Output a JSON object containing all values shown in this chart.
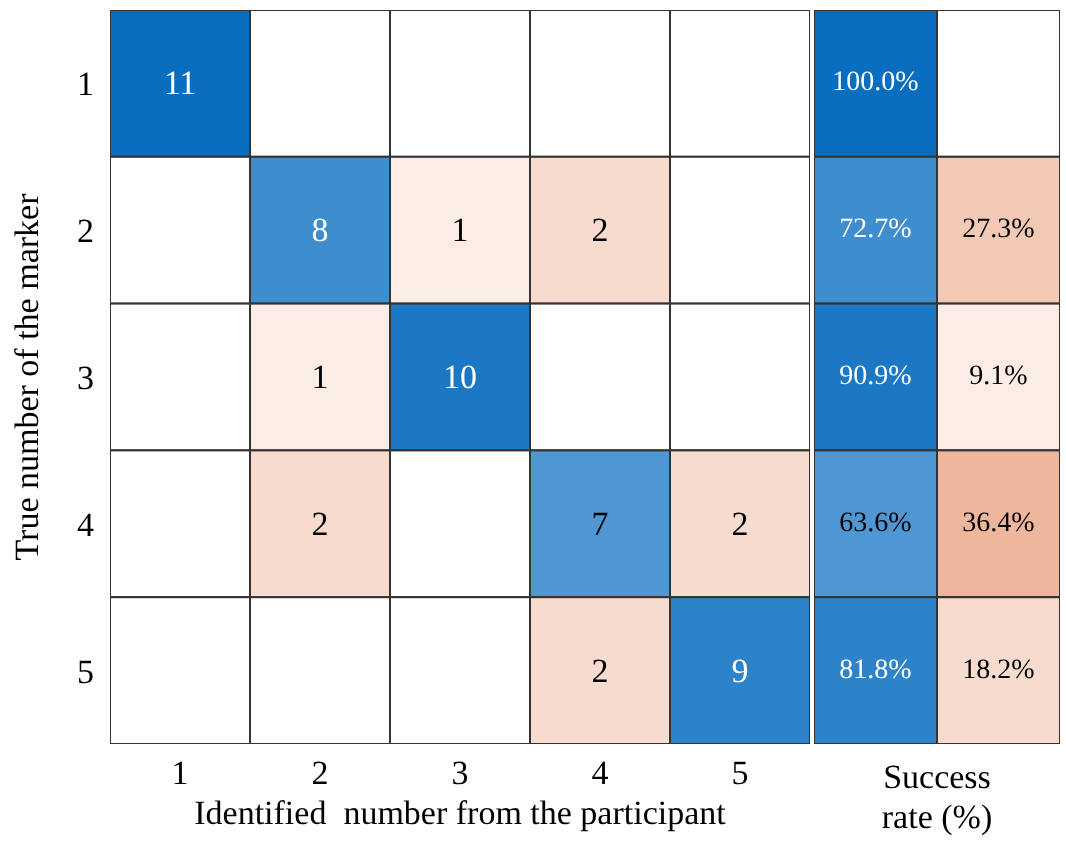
{
  "chart_data": [
    {
      "type": "heatmap",
      "xlabel": "Identified  number from the participant",
      "ylabel": "True number of the marker",
      "categories": [
        "1",
        "2",
        "3",
        "4",
        "5"
      ],
      "y_categories": [
        "1",
        "2",
        "3",
        "4",
        "5"
      ],
      "data_labels": true,
      "cells": [
        [
          11,
          null,
          null,
          null,
          null
        ],
        [
          null,
          8,
          1,
          2,
          null
        ],
        [
          null,
          1,
          10,
          null,
          null
        ],
        [
          null,
          2,
          null,
          7,
          2
        ],
        [
          null,
          null,
          null,
          2,
          9
        ]
      ]
    },
    {
      "type": "heatmap",
      "xlabel": "Success rate (%)",
      "categories": [
        null,
        null
      ],
      "y_categories": [
        "1",
        "2",
        "3",
        "4",
        "5"
      ],
      "tick_labels": false,
      "cells": [
        [
          100.0,
          null
        ],
        [
          72.7,
          27.3
        ],
        [
          90.9,
          9.1
        ],
        [
          63.6,
          36.4
        ],
        [
          81.8,
          18.2
        ]
      ],
      "cell_labels": [
        [
          "100.0%",
          null
        ],
        [
          "72.7%",
          "27.3%"
        ],
        [
          "90.9%",
          "9.1%"
        ],
        [
          "63.6%",
          "36.4%"
        ],
        [
          "81.8%",
          "18.2%"
        ]
      ]
    }
  ]
}
